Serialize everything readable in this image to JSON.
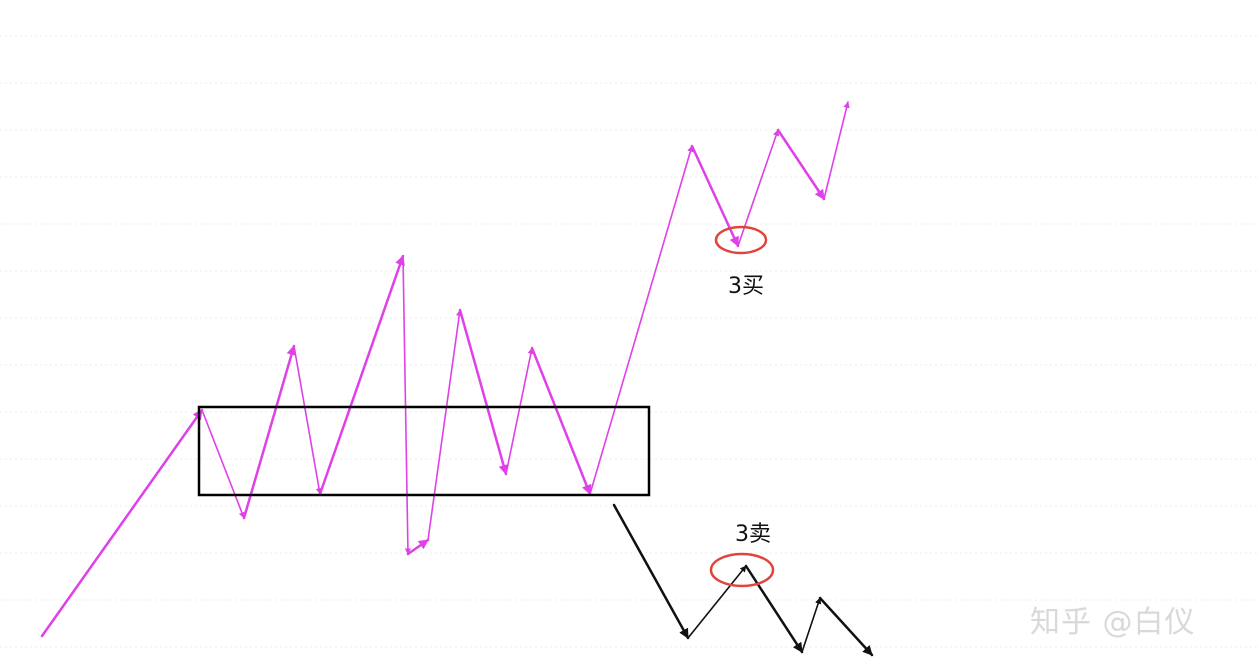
{
  "labels": {
    "third_buy": "3买",
    "third_sell": "3卖"
  },
  "watermark": {
    "text": "知乎 @白仪"
  },
  "colors": {
    "up_path": "#e040e8",
    "down_path": "#111111",
    "zone_border": "#000000",
    "marker": "#e0443c",
    "grid": "#ececec"
  }
}
